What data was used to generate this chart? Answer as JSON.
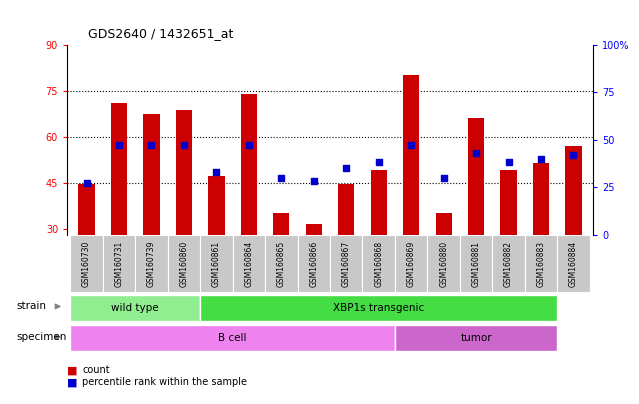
{
  "title": "GDS2640 / 1432651_at",
  "samples": [
    "GSM160730",
    "GSM160731",
    "GSM160739",
    "GSM160860",
    "GSM160861",
    "GSM160864",
    "GSM160865",
    "GSM160866",
    "GSM160867",
    "GSM160868",
    "GSM160869",
    "GSM160880",
    "GSM160881",
    "GSM160882",
    "GSM160883",
    "GSM160884"
  ],
  "counts": [
    44.5,
    71.0,
    67.5,
    68.5,
    47.0,
    74.0,
    35.0,
    31.5,
    44.5,
    49.0,
    80.0,
    35.0,
    66.0,
    49.0,
    51.5,
    57.0
  ],
  "percentiles": [
    27,
    47,
    47,
    47,
    33,
    47,
    30,
    28,
    35,
    38,
    47,
    30,
    43,
    38,
    40,
    42
  ],
  "ylim_left": [
    28,
    90
  ],
  "ylim_right": [
    0,
    100
  ],
  "yticks_left": [
    30,
    45,
    60,
    75,
    90
  ],
  "yticks_right": [
    0,
    25,
    50,
    75,
    100
  ],
  "bar_color": "#cc0000",
  "dot_color": "#0000cc",
  "strain_groups": [
    {
      "label": "wild type",
      "start": 0,
      "end": 4,
      "color": "#90ee90"
    },
    {
      "label": "XBP1s transgenic",
      "start": 4,
      "end": 15,
      "color": "#44dd44"
    }
  ],
  "specimen_groups": [
    {
      "label": "B cell",
      "start": 0,
      "end": 10,
      "color": "#ee82ee"
    },
    {
      "label": "tumor",
      "start": 10,
      "end": 15,
      "color": "#cc66cc"
    }
  ],
  "strain_label": "strain",
  "specimen_label": "specimen",
  "legend_count_label": "count",
  "legend_pct_label": "percentile rank within the sample",
  "background_color": "#ffffff",
  "tick_label_bg": "#c8c8c8",
  "grid_yticks": [
    45,
    60,
    75
  ]
}
